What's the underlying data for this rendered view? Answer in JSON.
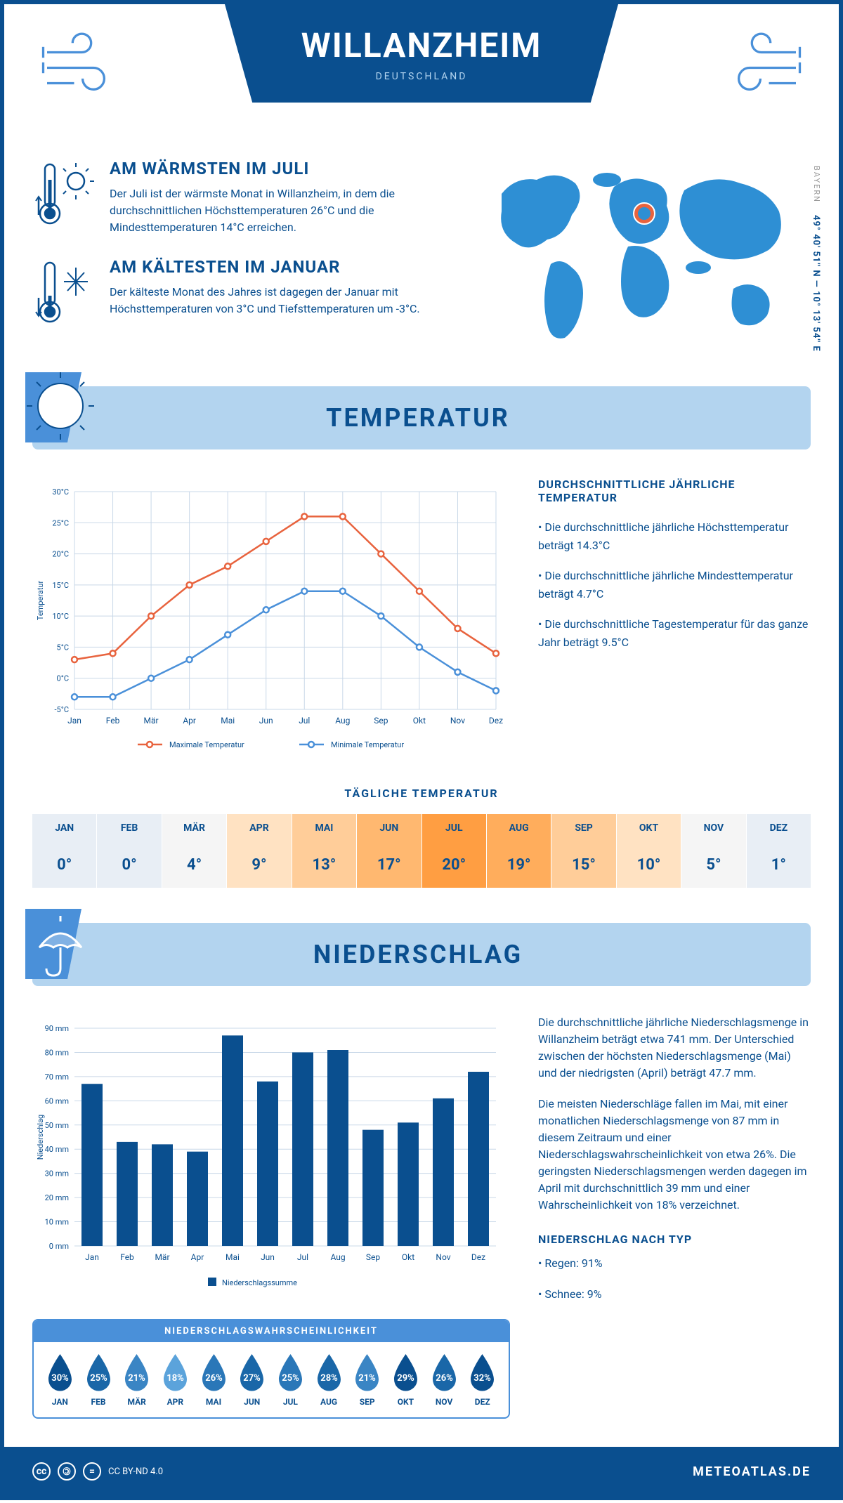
{
  "header": {
    "city": "WILLANZHEIM",
    "country": "DEUTSCHLAND",
    "coords": "49° 40' 51'' N — 10° 13' 54'' E",
    "region": "BAYERN"
  },
  "facts": {
    "warmest": {
      "title": "AM WÄRMSTEN IM JULI",
      "text": "Der Juli ist der wärmste Monat in Willanzheim, in dem die durchschnittlichen Höchsttemperaturen 26°C und die Mindesttemperaturen 14°C erreichen."
    },
    "coldest": {
      "title": "AM KÄLTESTEN IM JANUAR",
      "text": "Der kälteste Monat des Jahres ist dagegen der Januar mit Höchsttemperaturen von 3°C und Tiefsttemperaturen um -3°C."
    }
  },
  "temperature": {
    "section_title": "TEMPERATUR",
    "chart": {
      "months": [
        "Jan",
        "Feb",
        "Mär",
        "Apr",
        "Mai",
        "Jun",
        "Jul",
        "Aug",
        "Sep",
        "Okt",
        "Nov",
        "Dez"
      ],
      "max_values": [
        3,
        4,
        10,
        15,
        18,
        22,
        26,
        26,
        20,
        14,
        8,
        4
      ],
      "min_values": [
        -3,
        -3,
        0,
        3,
        7,
        11,
        14,
        14,
        10,
        5,
        1,
        -2
      ],
      "ymin": -5,
      "ymax": 30,
      "ystep": 5,
      "max_color": "#e8633e",
      "min_color": "#4a90d9",
      "grid_color": "#c9d8e8",
      "axis_color": "#0a4f8f",
      "ylabel": "Temperatur",
      "legend_max": "Maximale Temperatur",
      "legend_min": "Minimale Temperatur"
    },
    "info": {
      "title": "DURCHSCHNITTLICHE JÄHRLICHE TEMPERATUR",
      "b1": "• Die durchschnittliche jährliche Höchsttemperatur beträgt 14.3°C",
      "b2": "• Die durchschnittliche jährliche Mindesttemperatur beträgt 4.7°C",
      "b3": "• Die durchschnittliche Tagestemperatur für das ganze Jahr beträgt 9.5°C"
    },
    "daily": {
      "title": "TÄGLICHE TEMPERATUR",
      "months": [
        "JAN",
        "FEB",
        "MÄR",
        "APR",
        "MAI",
        "JUN",
        "JUL",
        "AUG",
        "SEP",
        "OKT",
        "NOV",
        "DEZ"
      ],
      "temps": [
        "0°",
        "0°",
        "4°",
        "9°",
        "13°",
        "17°",
        "20°",
        "19°",
        "15°",
        "10°",
        "5°",
        "1°"
      ],
      "colors": [
        "#e8eef5",
        "#e8eef5",
        "#f5f5f5",
        "#ffe2c2",
        "#ffcd99",
        "#ffb870",
        "#ff9e42",
        "#ffad5c",
        "#ffcd99",
        "#ffe2c2",
        "#f5f5f5",
        "#e8eef5"
      ]
    }
  },
  "precipitation": {
    "section_title": "NIEDERSCHLAG",
    "chart": {
      "months": [
        "Jan",
        "Feb",
        "Mär",
        "Apr",
        "Mai",
        "Jun",
        "Jul",
        "Aug",
        "Sep",
        "Okt",
        "Nov",
        "Dez"
      ],
      "values": [
        67,
        43,
        42,
        39,
        87,
        68,
        80,
        81,
        48,
        51,
        61,
        72
      ],
      "ymin": 0,
      "ymax": 90,
      "ystep": 10,
      "bar_color": "#0a4f8f",
      "grid_color": "#c9d8e8",
      "ylabel": "Niederschlag",
      "legend": "Niederschlagssumme"
    },
    "info": {
      "p1": "Die durchschnittliche jährliche Niederschlagsmenge in Willanzheim beträgt etwa 741 mm. Der Unterschied zwischen der höchsten Niederschlagsmenge (Mai) und der niedrigsten (April) beträgt 47.7 mm.",
      "p2": "Die meisten Niederschläge fallen im Mai, mit einer monatlichen Niederschlagsmenge von 87 mm in diesem Zeitraum und einer Niederschlagswahrscheinlichkeit von etwa 26%. Die geringsten Niederschlagsmengen werden dagegen im April mit durchschnittlich 39 mm und einer Wahrscheinlichkeit von 18% verzeichnet.",
      "type_title": "NIEDERSCHLAG NACH TYP",
      "type1": "• Regen: 91%",
      "type2": "• Schnee: 9%"
    },
    "probability": {
      "title": "NIEDERSCHLAGSWAHRSCHEINLICHKEIT",
      "months": [
        "JAN",
        "FEB",
        "MÄR",
        "APR",
        "MAI",
        "JUN",
        "JUL",
        "AUG",
        "SEP",
        "OKT",
        "NOV",
        "DEZ"
      ],
      "values": [
        "30%",
        "25%",
        "21%",
        "18%",
        "26%",
        "27%",
        "25%",
        "28%",
        "21%",
        "29%",
        "26%",
        "32%"
      ],
      "colors": [
        "#0a4f8f",
        "#1a67a8",
        "#3a85c4",
        "#5ba3db",
        "#2a77b8",
        "#1a67a8",
        "#2a77b8",
        "#1a67a8",
        "#3a85c4",
        "#0a4f8f",
        "#1a67a8",
        "#0a4f8f"
      ]
    }
  },
  "footer": {
    "license": "CC BY-ND 4.0",
    "brand": "METEOATLAS.DE"
  },
  "colors": {
    "primary": "#0a4f8f",
    "light": "#b3d4ef",
    "accent": "#4a90d9",
    "marker": "#e8633e"
  }
}
